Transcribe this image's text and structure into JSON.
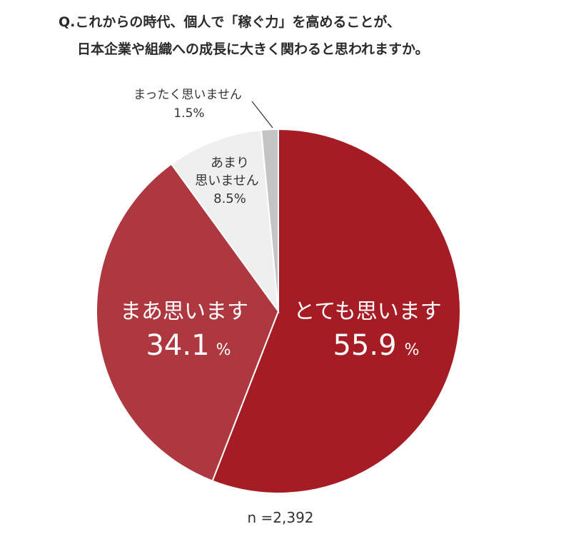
{
  "question": {
    "line1": "Q.これからの時代、個人で「稼ぐ力」を高めることが、",
    "line2": "日本企業や組織への成長に大きく関わると思われますか。"
  },
  "chart_data": {
    "type": "pie",
    "slices": [
      {
        "label": "とても思います",
        "value": 55.9,
        "color": "#a61c24"
      },
      {
        "label": "まあ思います",
        "value": 34.1,
        "color": "#ad3840"
      },
      {
        "label": "あまり思いません",
        "value": 8.5,
        "color": "#efefef"
      },
      {
        "label": "まったく思いません",
        "value": 1.5,
        "color": "#c4c4c4"
      }
    ],
    "value_display": {
      "とても思います": "55.9",
      "まあ思います": "34.1",
      "あまり思いません": "8.5",
      "まったく思いません": "1.5"
    },
    "unit": "%",
    "legend": "none"
  },
  "slice_labels": {
    "s0": {
      "name": "とても思います",
      "value": "55.9",
      "unit": "%"
    },
    "s1": {
      "name": "まあ思います",
      "value": "34.1",
      "unit": "%"
    },
    "s2": {
      "name_line1": "あまり",
      "name_line2": "思いません",
      "value": "8.5%"
    },
    "s3": {
      "name": "まったく思いません",
      "value": "1.5%"
    }
  },
  "sample_size": "n =2,392"
}
